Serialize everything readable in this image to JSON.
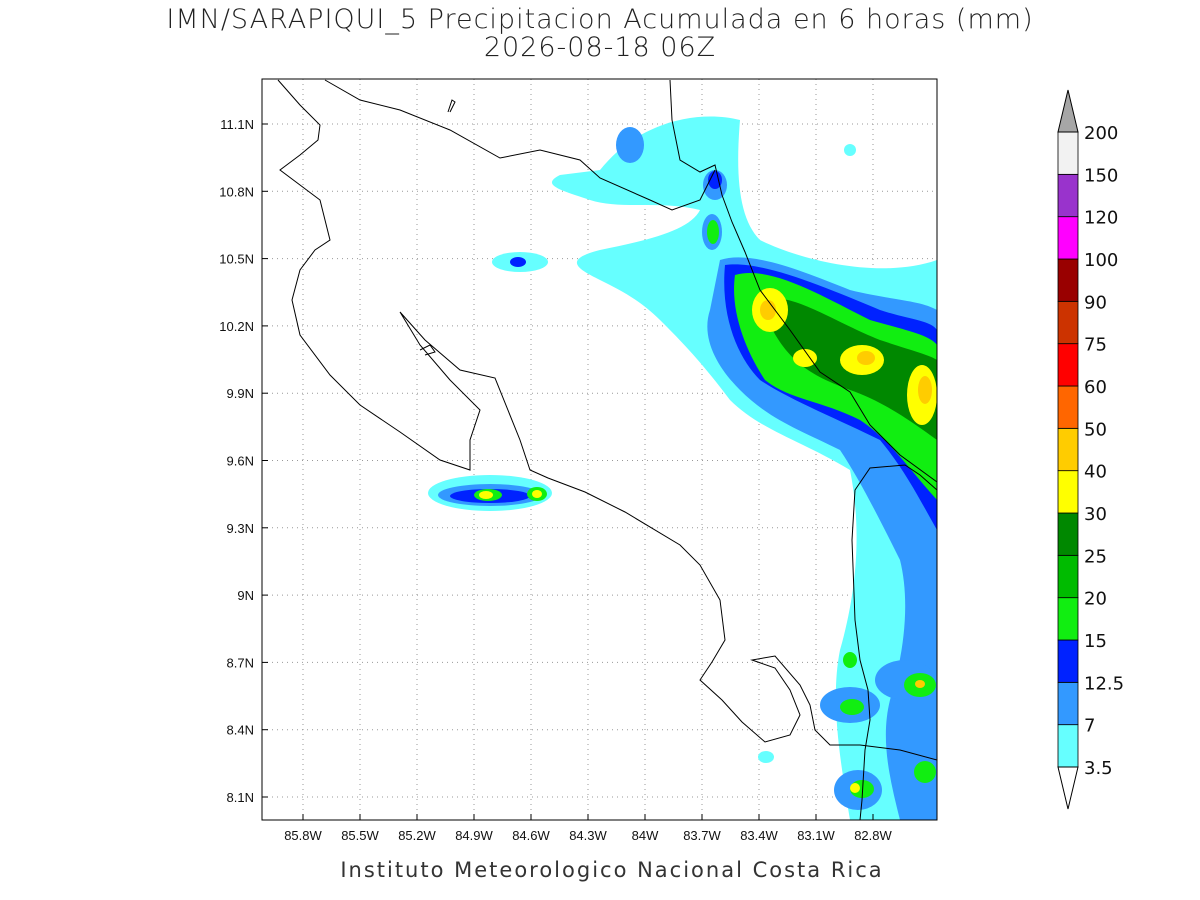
{
  "header": {
    "title": "IMN/SARAPIQUI_5 Precipitacion Acumulada en 6 horas (mm)",
    "subtitle": "2026-08-18 06Z"
  },
  "map": {
    "lon_ticks": [
      "85.8W",
      "85.5W",
      "85.2W",
      "84.9W",
      "84.6W",
      "84.3W",
      "84W",
      "83.7W",
      "83.4W",
      "83.1W",
      "82.8W"
    ],
    "lat_ticks": [
      "11.1N",
      "10.8N",
      "10.5N",
      "10.2N",
      "9.9N",
      "9.6N",
      "9.3N",
      "9N",
      "8.7N",
      "8.4N",
      "8.1N"
    ]
  },
  "colorbar": {
    "levels": [
      3.5,
      7,
      12.5,
      15,
      20,
      25,
      30,
      40,
      50,
      60,
      75,
      90,
      100,
      120,
      150,
      200
    ],
    "colors": [
      "#66ffff",
      "#3399ff",
      "#0022ff",
      "#11ee11",
      "#00bb00",
      "#008800",
      "#ffff00",
      "#ffcc00",
      "#ff6600",
      "#ff0000",
      "#cc3300",
      "#990000",
      "#ff00ff",
      "#9933cc",
      "#f2f2f2"
    ],
    "under_color": "#ffffff",
    "over_color": "#a6a6a6"
  },
  "footer": "Instituto Meteorologico Nacional Costa Rica"
}
